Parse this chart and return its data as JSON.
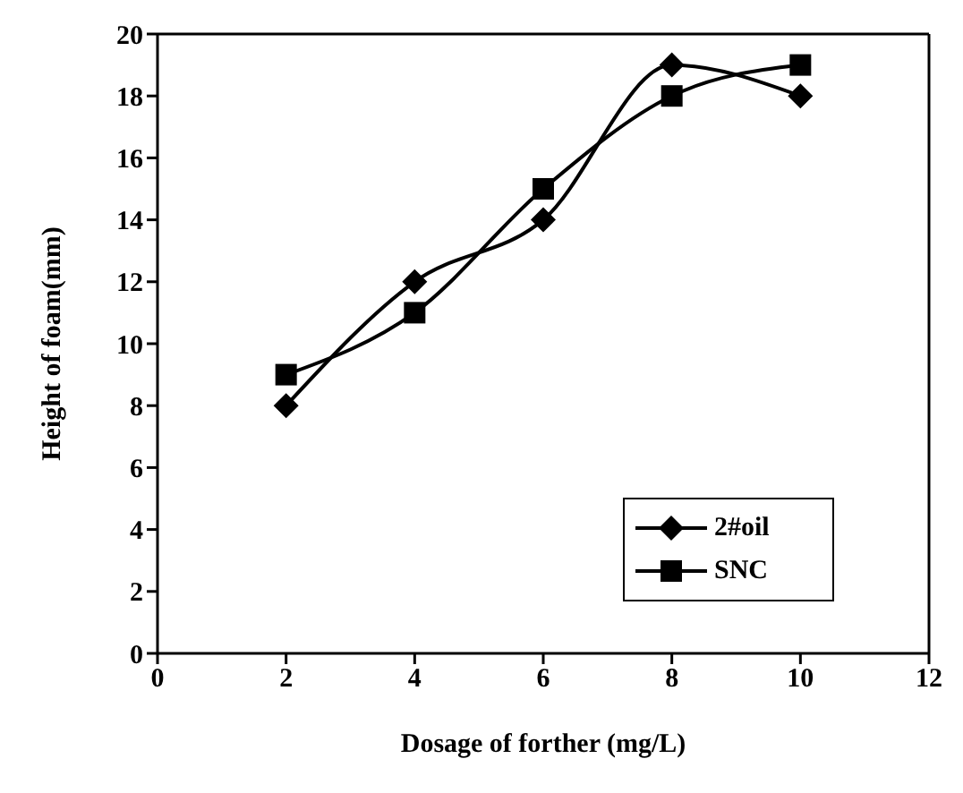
{
  "chart_data": {
    "type": "line",
    "xlabel": "Dosage of forther (mg/L)",
    "ylabel": "Height of foam(mm)",
    "x": [
      2,
      4,
      6,
      8,
      10
    ],
    "series": [
      {
        "name": "2#oil",
        "color": "#000000",
        "values": [
          8,
          12,
          14,
          19,
          18
        ],
        "marker": "diamond"
      },
      {
        "name": "SNC",
        "color": "#000000",
        "values": [
          9,
          11,
          15,
          18,
          19
        ],
        "marker": "square"
      }
    ],
    "xlim": [
      0,
      12
    ],
    "xticks": [
      0,
      2,
      4,
      6,
      8,
      10,
      12
    ],
    "ylim": [
      0,
      20
    ],
    "yticks": [
      0,
      2,
      4,
      6,
      8,
      10,
      12,
      14,
      16,
      18,
      20
    ],
    "grid": false,
    "legend": "bottom right",
    "line_style": "solid"
  }
}
